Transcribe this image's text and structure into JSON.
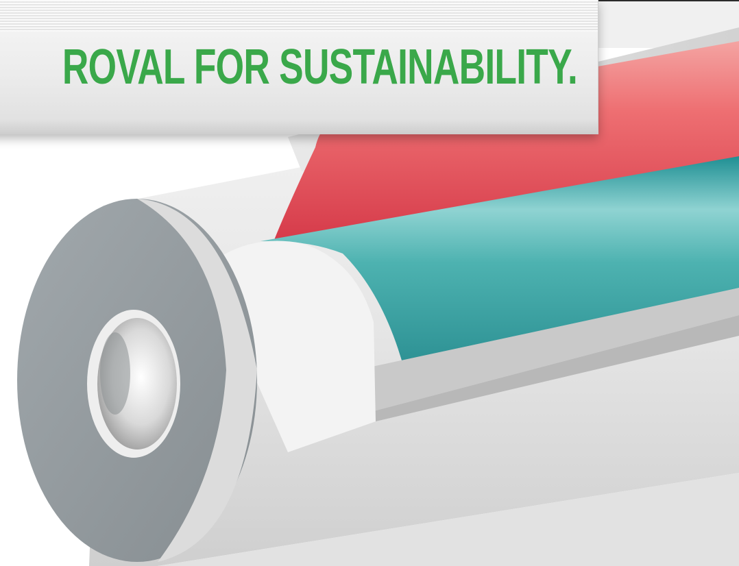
{
  "banner": {
    "headline": "ROVAL FOR SUSTAINABILITY."
  },
  "colors": {
    "headline_green": "#3aa84a",
    "outer_jacket": "#dcdcdc",
    "end_face_grey": "#8f969a",
    "red_layer": "#e5515c",
    "teal_layer": "#3fa7a7"
  },
  "illustration": {
    "subject": "pipe-cutaway",
    "layers": [
      "outer-jacket",
      "red-layer",
      "teal-layer",
      "inner-core"
    ]
  }
}
